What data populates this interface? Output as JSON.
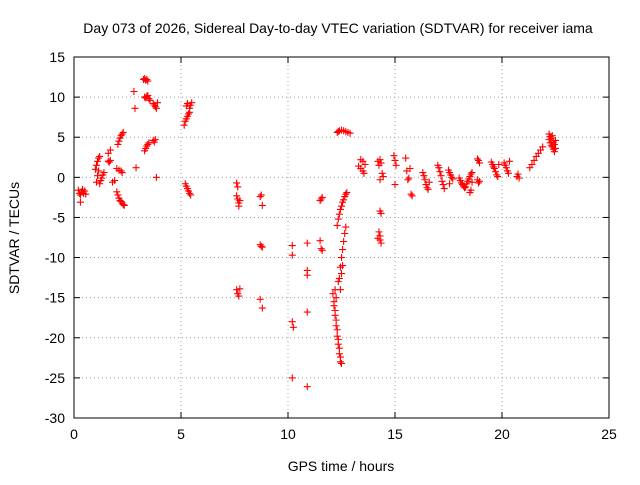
{
  "chart_data": {
    "type": "scatter",
    "title": "Day 073 of 2026, Sidereal Day-to-day VTEC variation (SDTVAR) for receiver iama",
    "xlabel": "GPS time / hours",
    "ylabel": "SDTVAR / TECUs",
    "xlim": [
      0,
      25
    ],
    "ylim": [
      -30,
      15
    ],
    "xticks": [
      0,
      5,
      10,
      15,
      20,
      25
    ],
    "yticks": [
      -30,
      -25,
      -20,
      -15,
      -10,
      -5,
      0,
      5,
      10,
      15
    ],
    "grid": true,
    "marker": "+",
    "colors": {
      "marker": "#ff0000",
      "grid": "#a0a0a0",
      "axis": "#000000"
    },
    "series": [
      {
        "name": "SDTVAR",
        "points": [
          [
            0.2,
            -1.6
          ],
          [
            0.25,
            -2.0
          ],
          [
            0.3,
            -2.2
          ],
          [
            0.3,
            -3.1
          ],
          [
            0.35,
            -1.8
          ],
          [
            0.4,
            -1.5
          ],
          [
            0.45,
            -2.0
          ],
          [
            0.5,
            -1.7
          ],
          [
            0.55,
            -2.1
          ],
          [
            1.0,
            1.0
          ],
          [
            1.05,
            1.5
          ],
          [
            1.1,
            2.0
          ],
          [
            1.15,
            2.4
          ],
          [
            1.2,
            2.6
          ],
          [
            1.2,
            -0.8
          ],
          [
            1.25,
            -0.4
          ],
          [
            1.3,
            -0.1
          ],
          [
            1.35,
            0.3
          ],
          [
            1.4,
            0.6
          ],
          [
            1.05,
            -0.6
          ],
          [
            1.1,
            0.2
          ],
          [
            1.15,
            0.8
          ],
          [
            1.6,
            3.0
          ],
          [
            1.7,
            3.4
          ],
          [
            1.6,
            2.0
          ],
          [
            1.65,
            1.9
          ],
          [
            1.7,
            2.1
          ],
          [
            1.8,
            -0.6
          ],
          [
            1.9,
            -0.4
          ],
          [
            2.0,
            -1.8
          ],
          [
            2.05,
            -2.2
          ],
          [
            2.1,
            -2.6
          ],
          [
            2.15,
            -2.9
          ],
          [
            2.2,
            -3.0
          ],
          [
            2.25,
            -3.2
          ],
          [
            2.3,
            -3.4
          ],
          [
            2.35,
            -3.5
          ],
          [
            2.05,
            4.1
          ],
          [
            2.1,
            4.5
          ],
          [
            2.15,
            4.9
          ],
          [
            2.2,
            5.2
          ],
          [
            2.25,
            5.4
          ],
          [
            2.3,
            5.6
          ],
          [
            2.0,
            1.1
          ],
          [
            2.1,
            0.9
          ],
          [
            2.2,
            0.8
          ],
          [
            2.25,
            0.6
          ],
          [
            2.8,
            10.7
          ],
          [
            2.85,
            8.6
          ],
          [
            2.9,
            1.2
          ],
          [
            3.25,
            12.2
          ],
          [
            3.3,
            12.3
          ],
          [
            3.35,
            12.1
          ],
          [
            3.4,
            12.2
          ],
          [
            3.45,
            12.0
          ],
          [
            3.3,
            10.0
          ],
          [
            3.35,
            9.9
          ],
          [
            3.4,
            10.1
          ],
          [
            3.45,
            10.2
          ],
          [
            3.5,
            9.8
          ],
          [
            3.55,
            9.6
          ],
          [
            3.3,
            3.3
          ],
          [
            3.35,
            3.6
          ],
          [
            3.4,
            3.9
          ],
          [
            3.45,
            4.1
          ],
          [
            3.5,
            4.3
          ],
          [
            3.7,
            9.2
          ],
          [
            3.75,
            9.0
          ],
          [
            3.8,
            8.8
          ],
          [
            3.85,
            8.6
          ],
          [
            3.9,
            9.3
          ],
          [
            3.7,
            4.6
          ],
          [
            3.75,
            4.4
          ],
          [
            3.8,
            4.7
          ],
          [
            3.85,
            0.0
          ],
          [
            5.15,
            6.5
          ],
          [
            5.2,
            7.0
          ],
          [
            5.25,
            7.3
          ],
          [
            5.3,
            7.6
          ],
          [
            5.35,
            7.9
          ],
          [
            5.4,
            8.1
          ],
          [
            5.4,
            8.6
          ],
          [
            5.45,
            9.0
          ],
          [
            5.5,
            9.3
          ],
          [
            5.3,
            9.2
          ],
          [
            5.25,
            8.9
          ],
          [
            5.2,
            -0.8
          ],
          [
            5.25,
            -1.1
          ],
          [
            5.3,
            -1.4
          ],
          [
            5.35,
            -1.7
          ],
          [
            5.4,
            -2.0
          ],
          [
            5.45,
            -2.2
          ],
          [
            7.6,
            -0.7
          ],
          [
            7.65,
            -1.2
          ],
          [
            7.6,
            -2.3
          ],
          [
            7.65,
            -2.7
          ],
          [
            7.7,
            -3.2
          ],
          [
            7.7,
            -3.6
          ],
          [
            7.75,
            -2.9
          ],
          [
            7.6,
            -14.0
          ],
          [
            7.65,
            -14.5
          ],
          [
            7.7,
            -14.8
          ],
          [
            7.75,
            -13.9
          ],
          [
            8.7,
            -2.4
          ],
          [
            8.75,
            -2.2
          ],
          [
            8.8,
            -3.5
          ],
          [
            8.7,
            -8.4
          ],
          [
            8.75,
            -8.6
          ],
          [
            8.8,
            -8.7
          ],
          [
            8.7,
            -15.2
          ],
          [
            8.8,
            -16.3
          ],
          [
            10.2,
            -8.5
          ],
          [
            10.2,
            -9.7
          ],
          [
            10.2,
            -18.0
          ],
          [
            10.25,
            -18.7
          ],
          [
            10.2,
            -25.0
          ],
          [
            10.9,
            -8.2
          ],
          [
            10.9,
            -11.6
          ],
          [
            10.9,
            -12.2
          ],
          [
            10.9,
            -16.8
          ],
          [
            10.9,
            -26.1
          ],
          [
            11.5,
            -7.9
          ],
          [
            11.55,
            -8.9
          ],
          [
            11.6,
            -9.1
          ],
          [
            11.5,
            -2.9
          ],
          [
            11.55,
            -2.7
          ],
          [
            11.6,
            -2.5
          ],
          [
            12.1,
            -14.5
          ],
          [
            12.15,
            -15.5
          ],
          [
            12.2,
            -16.6
          ],
          [
            12.25,
            -17.8
          ],
          [
            12.3,
            -19.0
          ],
          [
            12.35,
            -20.2
          ],
          [
            12.4,
            -21.3
          ],
          [
            12.45,
            -22.4
          ],
          [
            12.5,
            -23.2
          ],
          [
            12.15,
            -16.0
          ],
          [
            12.2,
            -17.2
          ],
          [
            12.25,
            -18.5
          ],
          [
            12.3,
            -19.8
          ],
          [
            12.35,
            -20.8
          ],
          [
            12.4,
            -22.0
          ],
          [
            12.45,
            -23.0
          ],
          [
            12.4,
            -12.6
          ],
          [
            12.45,
            -11.2
          ],
          [
            12.5,
            -10.0
          ],
          [
            12.55,
            -9.0
          ],
          [
            12.6,
            -8.0
          ],
          [
            12.65,
            -7.0
          ],
          [
            12.7,
            -6.2
          ],
          [
            12.3,
            -6.0
          ],
          [
            12.35,
            -5.2
          ],
          [
            12.4,
            -4.6
          ],
          [
            12.45,
            -4.0
          ],
          [
            12.5,
            -3.6
          ],
          [
            12.55,
            -3.1
          ],
          [
            12.6,
            -2.8
          ],
          [
            12.65,
            -2.4
          ],
          [
            12.7,
            -2.1
          ],
          [
            12.75,
            -1.9
          ],
          [
            12.3,
            5.6
          ],
          [
            12.35,
            5.7
          ],
          [
            12.4,
            5.8
          ],
          [
            12.5,
            5.9
          ],
          [
            12.6,
            5.8
          ],
          [
            12.7,
            5.7
          ],
          [
            12.8,
            5.6
          ],
          [
            12.9,
            5.5
          ],
          [
            12.2,
            -14.0
          ],
          [
            12.25,
            -15.0
          ],
          [
            12.35,
            -13.0
          ],
          [
            12.45,
            -14.0
          ],
          [
            12.5,
            -12.0
          ],
          [
            12.55,
            -11.0
          ],
          [
            13.3,
            1.4
          ],
          [
            13.4,
            1.1
          ],
          [
            13.5,
            0.8
          ],
          [
            13.55,
            0.5
          ],
          [
            13.6,
            1.6
          ],
          [
            13.5,
            2.0
          ],
          [
            13.4,
            2.2
          ],
          [
            14.2,
            2.0
          ],
          [
            14.25,
            1.5
          ],
          [
            14.3,
            2.2
          ],
          [
            14.35,
            1.8
          ],
          [
            14.4,
            0.5
          ],
          [
            14.45,
            0.1
          ],
          [
            14.3,
            -0.3
          ],
          [
            14.3,
            -4.2
          ],
          [
            14.35,
            -4.5
          ],
          [
            14.25,
            -6.8
          ],
          [
            14.3,
            -7.3
          ],
          [
            14.3,
            -7.8
          ],
          [
            14.35,
            -8.2
          ],
          [
            14.2,
            -7.6
          ],
          [
            14.95,
            2.7
          ],
          [
            15.0,
            2.1
          ],
          [
            15.05,
            1.5
          ],
          [
            15.0,
            -0.9
          ],
          [
            15.5,
            2.4
          ],
          [
            15.55,
            0.8
          ],
          [
            15.6,
            -0.3
          ],
          [
            15.65,
            -0.1
          ],
          [
            15.7,
            1.1
          ],
          [
            15.75,
            -2.1
          ],
          [
            15.8,
            -2.3
          ],
          [
            16.3,
            0.6
          ],
          [
            16.35,
            0.2
          ],
          [
            16.4,
            -0.3
          ],
          [
            16.45,
            -0.9
          ],
          [
            16.5,
            -1.3
          ],
          [
            16.55,
            -1.5
          ],
          [
            16.6,
            -0.6
          ],
          [
            17.0,
            1.5
          ],
          [
            17.05,
            1.2
          ],
          [
            17.1,
            0.7
          ],
          [
            17.15,
            0.2
          ],
          [
            17.2,
            -0.5
          ],
          [
            17.25,
            -0.9
          ],
          [
            17.3,
            -1.4
          ],
          [
            17.5,
            0.9
          ],
          [
            17.55,
            0.6
          ],
          [
            17.6,
            0.3
          ],
          [
            17.65,
            0.0
          ],
          [
            17.7,
            -0.2
          ],
          [
            17.55,
            -0.8
          ],
          [
            18.0,
            -0.1
          ],
          [
            18.05,
            -0.4
          ],
          [
            18.1,
            -0.7
          ],
          [
            18.15,
            -0.9
          ],
          [
            18.2,
            -1.1
          ],
          [
            18.25,
            -1.3
          ],
          [
            18.3,
            -1.2
          ],
          [
            18.35,
            -0.8
          ],
          [
            18.4,
            -0.5
          ],
          [
            18.45,
            -0.2
          ],
          [
            18.5,
            0.1
          ],
          [
            18.55,
            0.4
          ],
          [
            18.6,
            0.6
          ],
          [
            18.6,
            -0.6
          ],
          [
            18.55,
            -1.6
          ],
          [
            18.5,
            -1.9
          ],
          [
            18.85,
            2.3
          ],
          [
            18.9,
            2.1
          ],
          [
            18.95,
            1.8
          ],
          [
            18.85,
            -0.3
          ],
          [
            18.9,
            -0.7
          ],
          [
            18.95,
            -0.5
          ],
          [
            19.5,
            1.9
          ],
          [
            19.55,
            1.6
          ],
          [
            19.6,
            1.3
          ],
          [
            19.65,
            1.1
          ],
          [
            19.7,
            0.7
          ],
          [
            19.75,
            0.3
          ],
          [
            19.8,
            0.1
          ],
          [
            19.85,
            1.6
          ],
          [
            20.1,
            1.8
          ],
          [
            20.15,
            1.5
          ],
          [
            20.2,
            1.2
          ],
          [
            20.25,
            0.8
          ],
          [
            20.3,
            0.5
          ],
          [
            20.35,
            2.0
          ],
          [
            20.7,
            0.1
          ],
          [
            20.75,
            0.4
          ],
          [
            20.8,
            -0.1
          ],
          [
            21.3,
            1.2
          ],
          [
            21.4,
            1.6
          ],
          [
            21.5,
            2.1
          ],
          [
            21.6,
            2.6
          ],
          [
            21.7,
            3.0
          ],
          [
            21.8,
            3.4
          ],
          [
            21.9,
            3.8
          ],
          [
            22.2,
            4.7
          ],
          [
            22.25,
            4.3
          ],
          [
            22.3,
            4.0
          ],
          [
            22.35,
            3.8
          ],
          [
            22.4,
            3.5
          ],
          [
            22.45,
            3.2
          ],
          [
            22.5,
            3.6
          ],
          [
            22.2,
            5.4
          ],
          [
            22.25,
            5.1
          ],
          [
            22.3,
            4.9
          ],
          [
            22.35,
            5.2
          ],
          [
            22.4,
            4.4
          ],
          [
            22.45,
            4.1
          ],
          [
            22.5,
            4.6
          ]
        ]
      }
    ]
  }
}
